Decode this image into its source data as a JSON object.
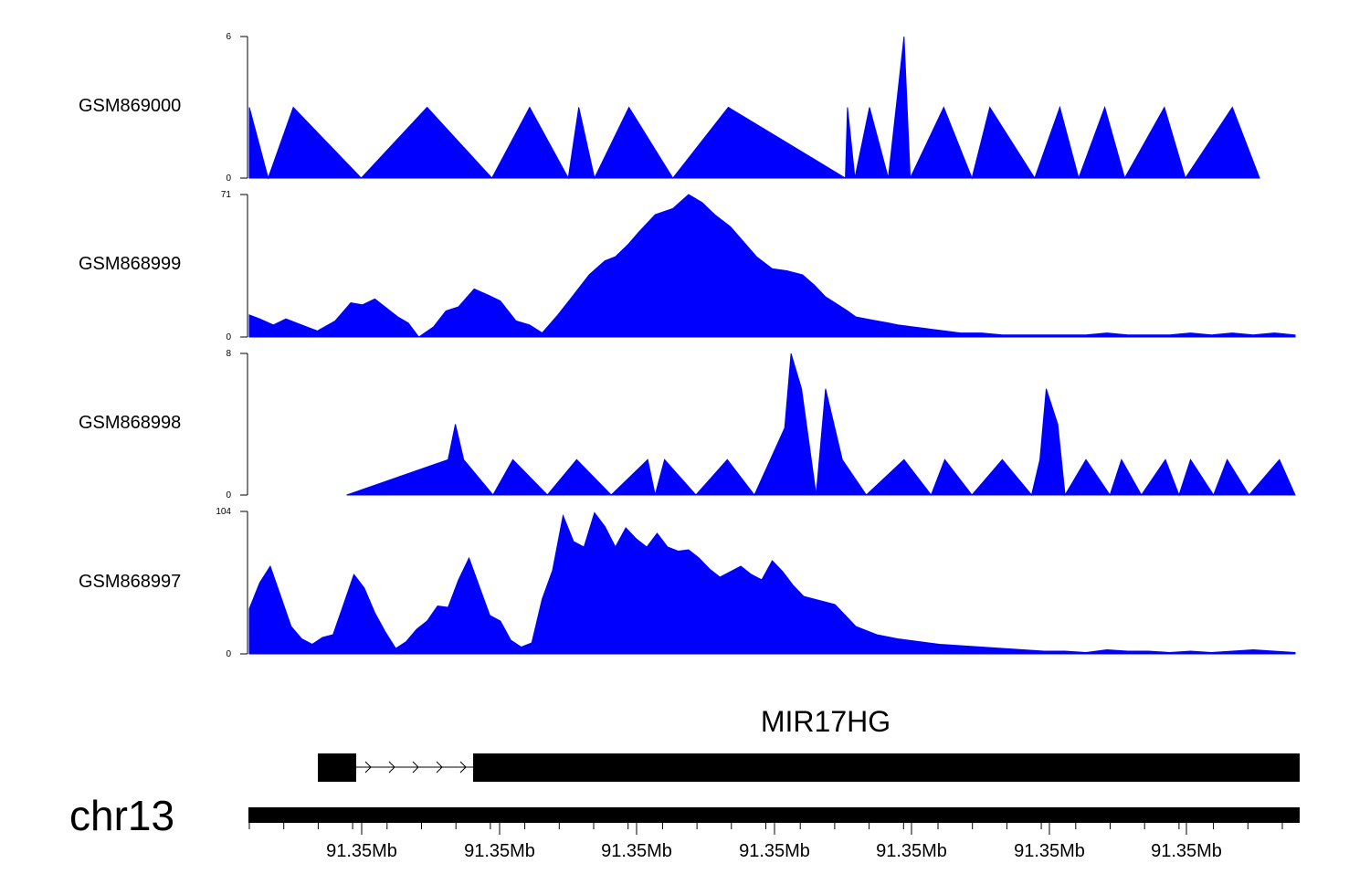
{
  "colors": {
    "signal": "#0000ff",
    "axis": "#000000",
    "gene": "#000000"
  },
  "chart_data": {
    "type": "area",
    "chromosome": "chr13",
    "position_tick_labels": [
      "91.35Mb",
      "91.35Mb",
      "91.35Mb",
      "91.35Mb",
      "91.35Mb",
      "91.35Mb",
      "91.35Mb"
    ],
    "gene": {
      "name": "MIR17HG"
    },
    "tracks": [
      {
        "name": "GSM869000",
        "ylim": [
          0,
          6
        ],
        "x": [
          0,
          1.8,
          4.2,
          10.7,
          17,
          23.2,
          26.8,
          30.5,
          31.5,
          33,
          36.3,
          40.5,
          45.8,
          57,
          57.2,
          57.9,
          59.3,
          61.1,
          62.6,
          63.2,
          66.4,
          69.1,
          70.8,
          75.1,
          77.5,
          79.3,
          81.8,
          83.7,
          87.5,
          89.5,
          94,
          96.6
        ],
        "y": [
          3,
          0,
          3,
          0,
          3,
          0,
          3,
          0,
          3,
          0,
          3,
          0,
          3,
          0,
          3,
          0,
          3,
          0,
          6,
          0,
          3,
          0,
          3,
          0,
          3,
          0,
          3,
          0,
          3,
          0,
          3,
          0
        ]
      },
      {
        "name": "GSM868999",
        "ylim": [
          0,
          71
        ],
        "x": [
          0,
          1,
          2.3,
          3.5,
          5,
          6.5,
          8.2,
          9.7,
          10.8,
          12,
          14.2,
          15.2,
          16.2,
          17.6,
          18.8,
          20,
          21.5,
          22.8,
          24,
          25.5,
          26.8,
          28,
          29.5,
          31,
          32.5,
          34,
          35,
          36.2,
          37.2,
          38.8,
          40.5,
          42,
          43.3,
          44.5,
          46,
          47,
          48.5,
          50,
          51.4,
          52.9,
          54,
          55.1,
          56,
          57.2,
          58,
          59,
          60,
          61.1,
          62,
          63.5,
          65,
          66.5,
          68,
          70,
          72,
          74,
          76,
          78,
          80,
          82,
          84,
          86,
          88,
          90,
          92,
          94,
          96,
          98,
          100
        ],
        "y": [
          11,
          9,
          6,
          9,
          6,
          3,
          8,
          17,
          16,
          19,
          10,
          7,
          0,
          5,
          13,
          15,
          24,
          21,
          18,
          8,
          6,
          2,
          11,
          21,
          31,
          38,
          40,
          46,
          52,
          61,
          64,
          71,
          67,
          61,
          55,
          49,
          40,
          34,
          33,
          31,
          26,
          20,
          17,
          13,
          10,
          9,
          8,
          7,
          6,
          5,
          4,
          3,
          2,
          2,
          1,
          1,
          1,
          1,
          1,
          2,
          1,
          1,
          1,
          2,
          1,
          2,
          1,
          2,
          1
        ]
      },
      {
        "name": "GSM868998",
        "ylim": [
          0,
          8
        ],
        "x": [
          9.3,
          19,
          19.7,
          20.5,
          23.3,
          25.2,
          28.5,
          31.3,
          34.6,
          38.1,
          38.8,
          39.7,
          42.7,
          45.7,
          48.3,
          51.2,
          51.8,
          52.8,
          54.2,
          55.1,
          56.7,
          59,
          62.6,
          65.2,
          66.5,
          69.1,
          72,
          74.8,
          75.6,
          76.2,
          77.3,
          78,
          80,
          82.3,
          83.4,
          85.3,
          87.6,
          88.9,
          90,
          92.2,
          93.5,
          95.6,
          98.5,
          100
        ],
        "y": [
          0,
          2,
          4,
          2,
          0,
          2,
          0,
          2,
          0,
          2,
          0,
          2,
          0,
          2,
          0,
          3.8,
          8,
          6,
          0,
          6,
          2,
          0,
          2,
          0,
          2,
          0,
          2,
          0,
          2,
          6,
          4,
          0,
          2,
          0,
          2,
          0,
          2,
          0,
          2,
          0,
          2,
          0,
          2,
          0
        ]
      },
      {
        "name": "GSM868997",
        "ylim": [
          0,
          104
        ],
        "x": [
          0,
          1,
          2,
          3,
          4,
          5,
          6,
          7,
          8,
          9,
          10,
          11,
          12,
          13,
          14,
          15,
          16,
          17,
          18,
          19,
          20,
          21,
          22,
          23,
          24,
          25,
          26,
          27,
          28,
          29,
          30,
          31,
          32,
          33,
          34,
          35,
          36,
          37,
          38,
          39,
          40,
          41,
          42,
          43,
          44,
          45,
          46,
          47,
          48,
          49,
          50,
          51,
          52,
          53,
          54,
          56,
          58,
          60,
          62,
          64,
          66,
          68,
          70,
          72,
          74,
          76,
          78,
          80,
          82,
          84,
          86,
          88,
          90,
          92,
          94,
          96,
          98,
          100
        ],
        "y": [
          33,
          52,
          64,
          42,
          20,
          11,
          7,
          12,
          14,
          36,
          58,
          48,
          30,
          16,
          4,
          9,
          18,
          24,
          35,
          34,
          54,
          70,
          49,
          28,
          24,
          10,
          5,
          8,
          40,
          61,
          101,
          82,
          78,
          103,
          93,
          78,
          92,
          84,
          78,
          88,
          78,
          75,
          76,
          70,
          62,
          56,
          60,
          64,
          58,
          54,
          68,
          60,
          50,
          42,
          40,
          36,
          20,
          14,
          11,
          9,
          7,
          6,
          5,
          4,
          3,
          2,
          2,
          1,
          3,
          2,
          2,
          1,
          2,
          1,
          2,
          3,
          2,
          1
        ]
      }
    ]
  }
}
